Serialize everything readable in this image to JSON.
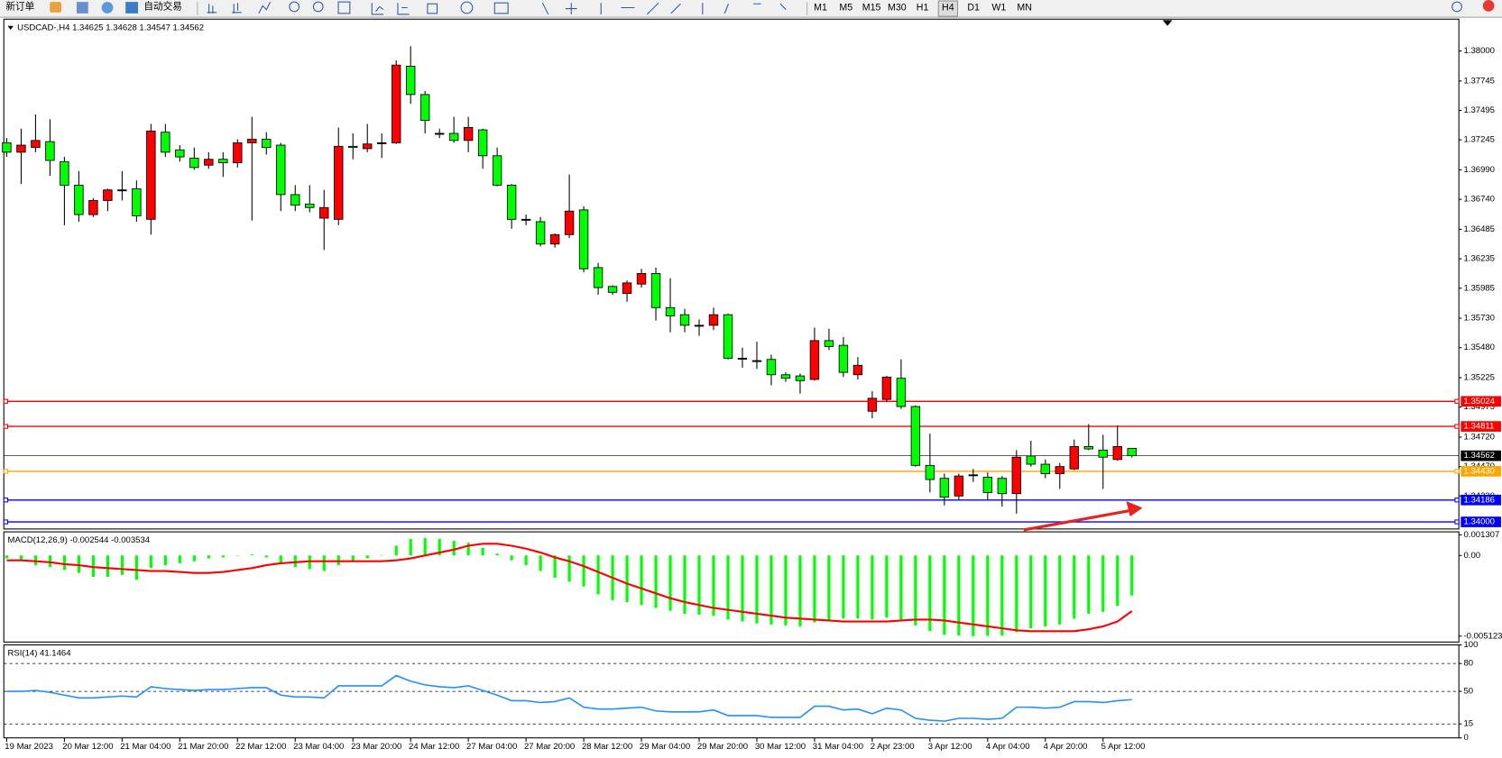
{
  "toolbar": {
    "buttons": [
      "新订单",
      "自动交易"
    ],
    "timeframes": [
      "M1",
      "M5",
      "M15",
      "M30",
      "H1",
      "H4",
      "D1",
      "W1",
      "MN"
    ]
  },
  "chart_data": [
    {
      "type": "candlestick",
      "title": "USDCAD-,H4  1.34625 1.34628 1.34547 1.34562",
      "up_color": "#ff0000",
      "down_color": "#00ff00",
      "categories": [
        "19 Mar 2023",
        null,
        null,
        null,
        "20 Mar 12:00",
        null,
        null,
        null,
        "21 Mar 04:00",
        null,
        null,
        null,
        "21 Mar 20:00",
        null,
        null,
        null,
        "22 Mar 12:00",
        null,
        null,
        null,
        "23 Mar 04:00",
        null,
        null,
        null,
        "23 Mar 20:00",
        null,
        null,
        null,
        "24 Mar 12:00",
        null,
        null,
        null,
        "27 Mar 04:00",
        null,
        null,
        null,
        "27 Mar 20:00",
        null,
        null,
        null,
        "28 Mar 12:00",
        null,
        null,
        null,
        "29 Mar 04:00",
        null,
        null,
        null,
        "29 Mar 20:00",
        null,
        null,
        null,
        "30 Mar 12:00",
        null,
        null,
        null,
        "31 Mar 04:00",
        null,
        null,
        null,
        "2 Apr 23:00",
        null,
        null,
        null,
        "3 Apr 12:00",
        null,
        null,
        null,
        "4 Apr 04:00",
        null,
        null,
        null,
        "4 Apr 20:00",
        null,
        null,
        null,
        "5 Apr 12:00",
        null,
        null
      ],
      "open": [
        1.3722,
        1.3714,
        1.3718,
        1.3723,
        1.3706,
        1.3686,
        1.3661,
        1.3673,
        1.3682,
        1.3683,
        1.3657,
        1.3731,
        1.3716,
        1.3709,
        1.3703,
        1.3708,
        1.3705,
        1.3722,
        1.3725,
        1.372,
        1.3678,
        1.367,
        1.3658,
        1.3657,
        1.3719,
        1.3717,
        1.3722,
        1.3722,
        1.3787,
        1.3763,
        1.373,
        1.373,
        1.3724,
        1.3733,
        1.3711,
        1.3686,
        1.3657,
        1.3655,
        1.3636,
        1.3644,
        1.3665,
        1.3616,
        1.36,
        1.3594,
        1.3602,
        1.3611,
        1.3582,
        1.3576,
        1.3567,
        1.3567,
        1.3576,
        1.3539,
        1.3537,
        1.3538,
        1.3525,
        1.3524,
        1.3521,
        1.3554,
        1.355,
        1.3525,
        1.3494,
        1.3504,
        1.3522,
        1.3498,
        1.3448,
        1.3437,
        1.3422,
        1.344,
        1.3438,
        1.3437,
        1.3424,
        1.3456,
        1.3449,
        1.3441,
        1.3445,
        1.3464,
        1.3461,
        1.3453,
        1.34625
      ],
      "high": [
        1.3726,
        1.3734,
        1.3746,
        1.3742,
        1.371,
        1.3698,
        1.3675,
        1.3683,
        1.3698,
        1.369,
        1.3738,
        1.3738,
        1.372,
        1.3718,
        1.3714,
        1.3714,
        1.3725,
        1.3744,
        1.3731,
        1.3722,
        1.3686,
        1.3686,
        1.3682,
        1.3735,
        1.373,
        1.3738,
        1.373,
        1.3792,
        1.3804,
        1.3766,
        1.3734,
        1.3744,
        1.3744,
        1.3734,
        1.3718,
        1.3687,
        1.3661,
        1.3659,
        1.3645,
        1.3695,
        1.3668,
        1.362,
        1.3601,
        1.3605,
        1.3615,
        1.3616,
        1.3607,
        1.3581,
        1.3572,
        1.3582,
        1.3577,
        1.3548,
        1.3553,
        1.3542,
        1.3527,
        1.3526,
        1.3565,
        1.3564,
        1.3557,
        1.354,
        1.3511,
        1.3524,
        1.3538,
        1.3499,
        1.3475,
        1.3441,
        1.3441,
        1.3445,
        1.3442,
        1.3439,
        1.3461,
        1.3469,
        1.3453,
        1.345,
        1.347,
        1.3483,
        1.3474,
        1.3482,
        1.34628
      ],
      "low": [
        1.371,
        1.3687,
        1.3714,
        1.3694,
        1.3652,
        1.3655,
        1.3659,
        1.3664,
        1.3673,
        1.3655,
        1.3644,
        1.371,
        1.3706,
        1.3699,
        1.37,
        1.3693,
        1.3701,
        1.3656,
        1.3712,
        1.3664,
        1.3664,
        1.3663,
        1.3631,
        1.3652,
        1.3708,
        1.3714,
        1.3709,
        1.3721,
        1.3755,
        1.373,
        1.3726,
        1.3722,
        1.3714,
        1.37,
        1.3685,
        1.3649,
        1.3652,
        1.3634,
        1.3633,
        1.3641,
        1.3612,
        1.3593,
        1.3593,
        1.3587,
        1.3599,
        1.3571,
        1.3561,
        1.3561,
        1.3558,
        1.3563,
        1.3538,
        1.3531,
        1.353,
        1.3516,
        1.3519,
        1.3509,
        1.352,
        1.3546,
        1.3523,
        1.3521,
        1.3488,
        1.3502,
        1.3496,
        1.3447,
        1.3425,
        1.3414,
        1.3419,
        1.3434,
        1.3419,
        1.3413,
        1.3407,
        1.3447,
        1.3437,
        1.3428,
        1.3444,
        1.3461,
        1.3428,
        1.3452,
        1.34547
      ],
      "close": [
        1.3714,
        1.372,
        1.3724,
        1.3707,
        1.3686,
        1.3661,
        1.3673,
        1.3682,
        1.3682,
        1.366,
        1.3732,
        1.3714,
        1.371,
        1.3701,
        1.3708,
        1.3705,
        1.3722,
        1.3725,
        1.3718,
        1.3678,
        1.3669,
        1.3667,
        1.3667,
        1.3719,
        1.3718,
        1.3721,
        1.3722,
        1.3788,
        1.3763,
        1.3741,
        1.373,
        1.3724,
        1.3735,
        1.3711,
        1.3686,
        1.3657,
        1.3657,
        1.3636,
        1.3644,
        1.3664,
        1.3615,
        1.3599,
        1.3595,
        1.3603,
        1.3611,
        1.3582,
        1.3575,
        1.3567,
        1.3567,
        1.3576,
        1.3539,
        1.3539,
        1.3537,
        1.3525,
        1.3522,
        1.352,
        1.3554,
        1.3549,
        1.3527,
        1.3533,
        1.3505,
        1.3523,
        1.3498,
        1.3448,
        1.3436,
        1.3421,
        1.3439,
        1.344,
        1.3425,
        1.3424,
        1.3455,
        1.3449,
        1.3441,
        1.3447,
        1.3464,
        1.3462,
        1.3455,
        1.3464,
        1.34562
      ],
      "ylim": [
        1.3394,
        1.3827
      ],
      "yticks": [
        {
          "value": 1.38,
          "label": "1.38000"
        },
        1.37745,
        1.37495,
        1.37245,
        {
          "value": 1.3699,
          "label": "1.36990"
        },
        {
          "value": 1.3674,
          "label": "1.36740"
        },
        1.36485,
        1.36235,
        1.35985,
        {
          "value": 1.3573,
          "label": "1.35730"
        },
        {
          "value": 1.3548,
          "label": "1.35480"
        },
        1.35225,
        1.34975,
        {
          "value": 1.3472,
          "label": "1.34720"
        },
        {
          "value": 1.3447,
          "label": "1.34470"
        },
        {
          "value": 1.3422,
          "label": "1.34220"
        }
      ],
      "hlines": [
        {
          "value": 1.35024,
          "color": "#ff0000"
        },
        {
          "value": 1.34811,
          "color": "#ff0000"
        },
        {
          "value": 1.34562,
          "color": "#000000"
        },
        {
          "value": 1.3443,
          "label": "1.34430",
          "color": "#ffa500"
        },
        {
          "value": 1.34186,
          "color": "#0000ff"
        },
        {
          "value": 1.34,
          "label": "1.34000",
          "color": "#0000ff"
        }
      ]
    },
    {
      "type": "macd",
      "title": "MACD(12,26,9) -0.002544 -0.003534",
      "ylim": [
        -0.0055,
        0.0015
      ],
      "yticks": [
        0.001307,
        {
          "value": 0,
          "label": "0.00"
        },
        -0.005123
      ],
      "histogram": {
        "color": "#00ff00",
        "values": [
          -0.000185,
          -0.000309,
          -0.000617,
          -0.00074,
          -0.000926,
          -0.001111,
          -0.001357,
          -0.001357,
          -0.001234,
          -0.001543,
          -0.000802,
          -0.000617,
          -0.000494,
          -0.00037,
          -0.000185,
          -0.000123,
          2e-05,
          6.2e-05,
          -0.000123,
          -0.000494,
          -0.00074,
          -0.000864,
          -0.000987,
          -0.000617,
          -0.00037,
          -0.000185,
          3e-05,
          0.000617,
          0.001049,
          0.001111,
          0.001049,
          0.000926,
          0.000802,
          0.000494,
          0.000123,
          -0.000309,
          -0.000617,
          -0.000987,
          -0.001419,
          -0.001666,
          -0.001974,
          -0.002468,
          -0.002838,
          -0.002962,
          -0.003147,
          -0.003332,
          -0.003517,
          -0.003702,
          -0.003764,
          -0.003825,
          -0.004072,
          -0.004196,
          -0.004319,
          -0.004381,
          -0.004442,
          -0.004504,
          -0.004257,
          -0.004072,
          -0.004011,
          -0.004011,
          -0.004072,
          -0.003949,
          -0.004072,
          -0.004442,
          -0.004813,
          -0.00505,
          -0.00509,
          -0.005123,
          -0.00511,
          -0.0051,
          -0.004874,
          -0.004628,
          -0.004504,
          -0.004381,
          -0.004011,
          -0.003702,
          -0.003579,
          -0.003208,
          -0.002544
        ]
      },
      "signal": {
        "color": "#ff0000",
        "values": [
          -0.000309,
          -0.000309,
          -0.00037,
          -0.000432,
          -0.000555,
          -0.000617,
          -0.00074,
          -0.000802,
          -0.000864,
          -0.000926,
          -0.000987,
          -0.000987,
          -0.001049,
          -0.001111,
          -0.001111,
          -0.001049,
          -0.000926,
          -0.000802,
          -0.000617,
          -0.000494,
          -0.000432,
          -0.00037,
          -0.00037,
          -0.00037,
          -0.00037,
          -0.00037,
          -0.00037,
          -0.000309,
          -0.000185,
          0,
          0.000185,
          0.00037,
          0.000617,
          0.00074,
          0.00074,
          0.000617,
          0.000432,
          0.000185,
          -0.000123,
          -0.00037,
          -0.000679,
          -0.001049,
          -0.001419,
          -0.001789,
          -0.002098,
          -0.002406,
          -0.002715,
          -0.002962,
          -0.003147,
          -0.003332,
          -0.003455,
          -0.003579,
          -0.003702,
          -0.003825,
          -0.003949,
          -0.004011,
          -0.004072,
          -0.004134,
          -0.004196,
          -0.004196,
          -0.004196,
          -0.004196,
          -0.004134,
          -0.004072,
          -0.004072,
          -0.004134,
          -0.004257,
          -0.004381,
          -0.004504,
          -0.004628,
          -0.004751,
          -0.004813,
          -0.004813,
          -0.004813,
          -0.004813,
          -0.004689,
          -0.004504,
          -0.004196,
          -0.003534
        ]
      }
    },
    {
      "type": "line",
      "title": "RSI(14) 41.1464",
      "color": "#1e90ff",
      "ylim": [
        0,
        100
      ],
      "yticks": [
        100,
        80,
        50,
        15,
        0
      ],
      "values": [
        50,
        50,
        51,
        49,
        46,
        43,
        43,
        44,
        45,
        44,
        55,
        53,
        52,
        51,
        52,
        52,
        53,
        54,
        54,
        46,
        44,
        44,
        43,
        56,
        56,
        56,
        56,
        67,
        61,
        57,
        55,
        54,
        56,
        51,
        46,
        40,
        40,
        38,
        39,
        43,
        33,
        31,
        31,
        32,
        33,
        29,
        28,
        28,
        28,
        30,
        24,
        24,
        24,
        22,
        22,
        22,
        34,
        34,
        30,
        31,
        26,
        32,
        30,
        21,
        19,
        18,
        21,
        21,
        20,
        21,
        33,
        33,
        32,
        33,
        39,
        39,
        38,
        40,
        41.1464
      ]
    }
  ]
}
